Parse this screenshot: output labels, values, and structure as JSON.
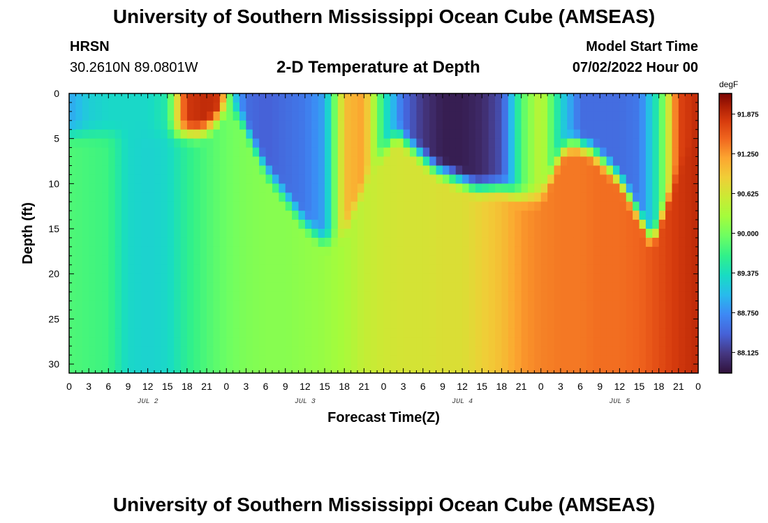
{
  "title": "University of Southern Mississippi Ocean Cube (AMSEAS)",
  "title_repeat": "University of Southern Mississippi Ocean Cube (AMSEAS)",
  "station": {
    "name": "HRSN",
    "coords": "30.2610N  89.0801W"
  },
  "model": {
    "label": "Model Start Time",
    "value": "07/02/2022 Hour 00"
  },
  "chart_data": {
    "type": "heatmap",
    "title": "2-D Temperature at Depth",
    "xlabel": "Forecast Time(Z)",
    "ylabel": "Depth (ft)",
    "x_hours_range": [
      0,
      96
    ],
    "y_range": [
      0,
      31
    ],
    "x_tick_labels": [
      "0",
      "3",
      "6",
      "9",
      "12",
      "15",
      "18",
      "21",
      "0",
      "3",
      "6",
      "9",
      "12",
      "15",
      "18",
      "21",
      "0",
      "3",
      "6",
      "9",
      "12",
      "15",
      "18",
      "21",
      "0",
      "3",
      "6",
      "9",
      "12",
      "15",
      "18",
      "21",
      "0"
    ],
    "y_tick_labels": [
      "0",
      "5",
      "10",
      "15",
      "20",
      "25",
      "30"
    ],
    "y_tick_values": [
      0,
      5,
      10,
      15,
      20,
      25,
      30
    ],
    "day_labels": [
      "JUL 2",
      "JUL 3",
      "JUL 4",
      "JUL 5"
    ],
    "colorbar": {
      "unit": "degF",
      "min": 87.8,
      "max": 92.2,
      "tick_labels": [
        "91.875",
        "91.250",
        "90.625",
        "90.000",
        "89.375",
        "88.750",
        "88.125"
      ],
      "tick_values": [
        91.875,
        91.25,
        90.625,
        90.0,
        89.375,
        88.75,
        88.125
      ]
    },
    "surface_temp": {
      "hours": [
        0,
        3,
        6,
        9,
        12,
        15,
        17,
        18,
        21,
        23,
        25,
        27,
        30,
        33,
        36,
        39,
        42,
        45,
        48,
        51,
        54,
        57,
        60,
        63,
        66,
        69,
        72,
        75,
        78,
        81,
        84,
        87,
        90,
        93,
        96
      ],
      "values": [
        88.9,
        89.2,
        89.3,
        89.3,
        89.3,
        89.5,
        91.2,
        91.8,
        91.9,
        91.8,
        89.3,
        88.5,
        88.4,
        88.5,
        88.6,
        88.9,
        91.0,
        91.2,
        89.5,
        88.5,
        88.1,
        87.9,
        87.9,
        88.0,
        88.3,
        89.8,
        90.5,
        89.3,
        88.5,
        88.5,
        88.5,
        88.6,
        89.6,
        91.7,
        91.9
      ]
    },
    "deep_temp": {
      "hours": [
        0,
        6,
        9,
        12,
        15,
        18,
        21,
        24,
        27,
        30,
        33,
        36,
        39,
        42,
        45,
        48,
        51,
        54,
        57,
        60,
        63,
        66,
        69,
        72,
        75,
        78,
        81,
        84,
        87,
        90,
        93,
        96
      ],
      "values": [
        89.8,
        89.7,
        89.3,
        89.25,
        89.3,
        89.6,
        89.8,
        89.95,
        90.05,
        90.1,
        90.1,
        90.15,
        90.2,
        90.3,
        90.5,
        90.6,
        90.65,
        90.65,
        90.7,
        90.7,
        90.85,
        91.0,
        91.25,
        91.35,
        91.4,
        91.4,
        91.45,
        91.45,
        91.5,
        91.65,
        91.8,
        91.9
      ]
    },
    "cool_layer_base_ft": {
      "hours": [
        0,
        5,
        10,
        15,
        20,
        22,
        24,
        26,
        30,
        33,
        36,
        39,
        42,
        46,
        50,
        56,
        62,
        66,
        69,
        72,
        74,
        75,
        77,
        80,
        84,
        87,
        89,
        91,
        93,
        96
      ],
      "values": [
        4,
        4,
        4,
        4,
        4,
        3,
        1,
        2,
        8,
        11,
        14,
        16,
        15,
        8,
        4,
        8,
        10,
        10,
        11,
        11,
        8,
        6,
        5,
        6,
        9,
        13,
        16,
        12,
        8,
        4
      ]
    }
  }
}
